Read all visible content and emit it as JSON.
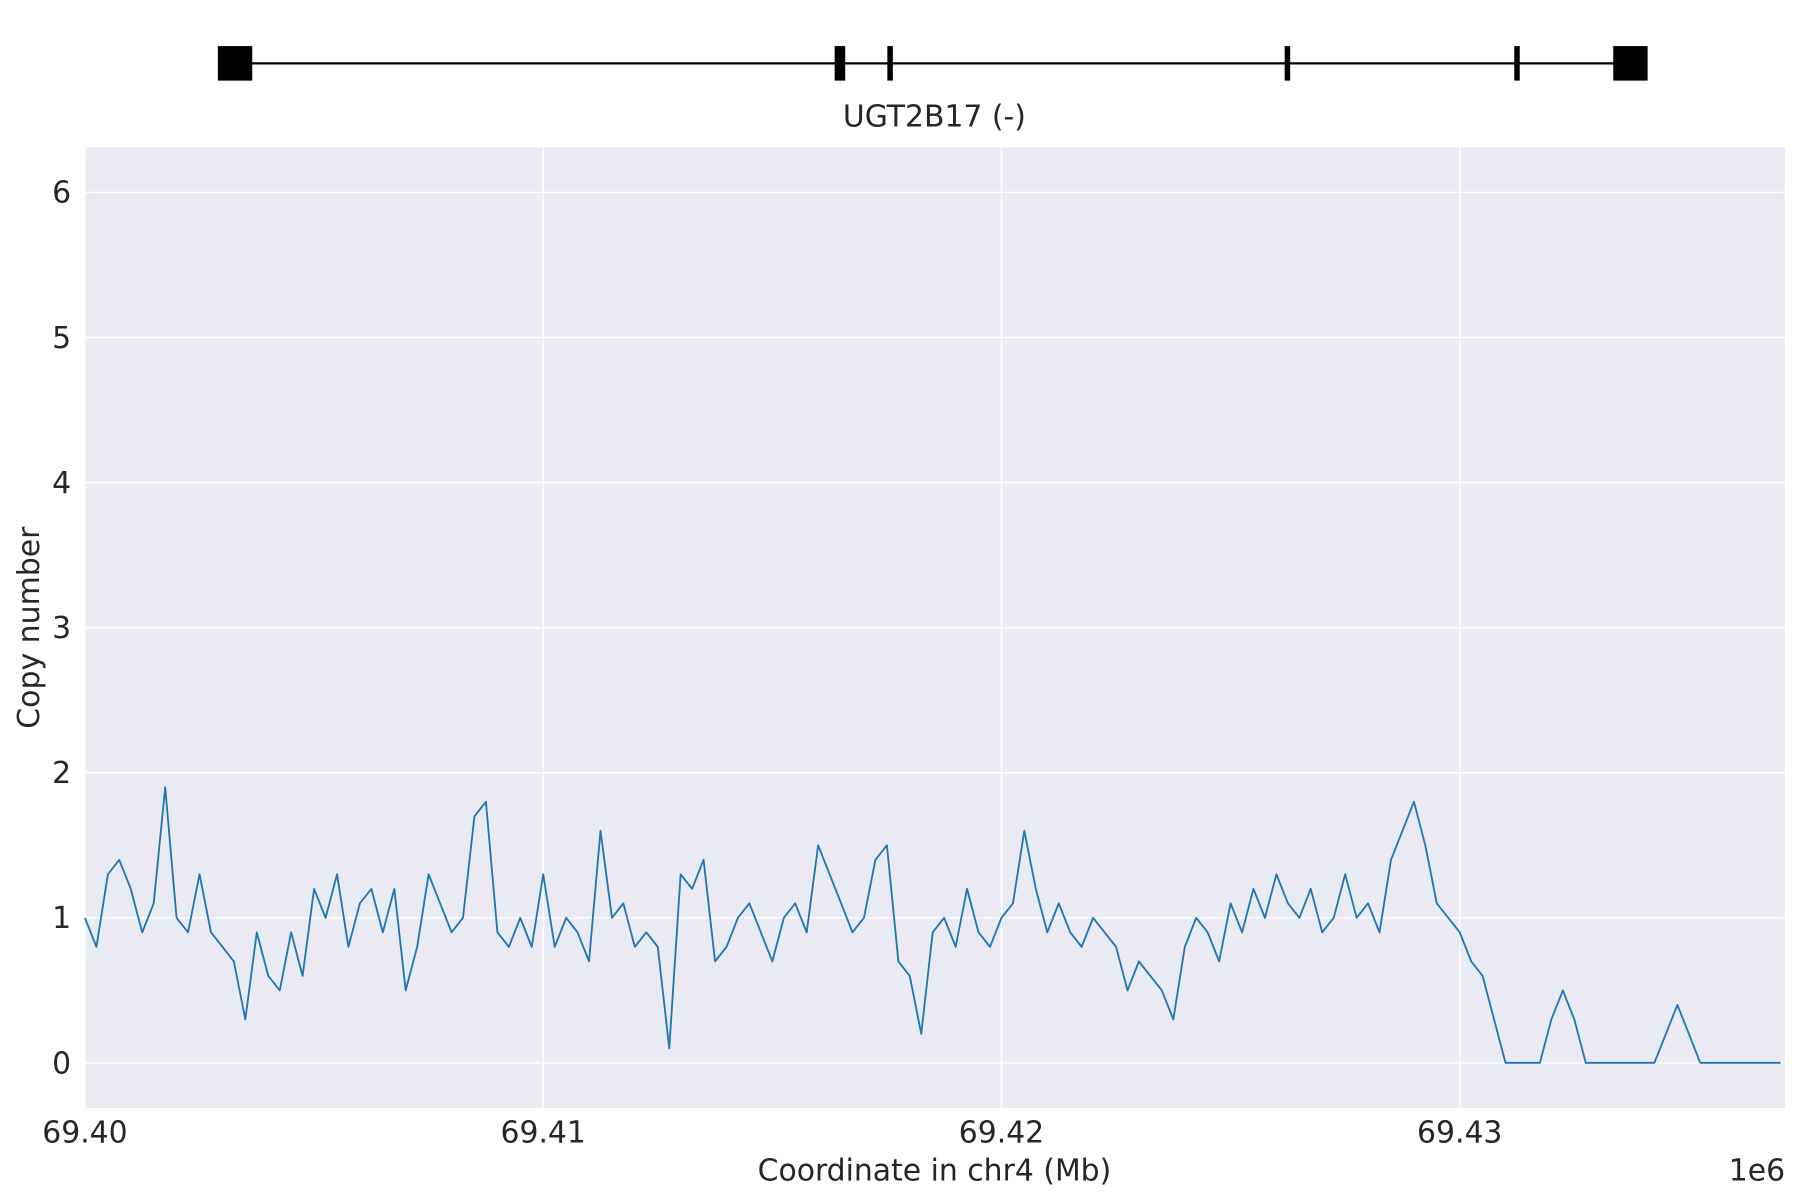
{
  "chart_data": {
    "type": "line",
    "gene": {
      "label": "UGT2B17 (-)",
      "start": 69.40328,
      "end": 69.43373,
      "exons": [
        [
          69.4029,
          69.40365
        ],
        [
          69.41636,
          69.41659
        ],
        [
          69.41751,
          69.41763
        ],
        [
          69.42618,
          69.4263
        ],
        [
          69.43119,
          69.43131
        ],
        [
          69.43335,
          69.4341
        ]
      ]
    },
    "xlabel": "Coordinate in chr4 (Mb)",
    "ylabel": "Copy number",
    "x_offset_label": "1e6",
    "xlim": [
      69.4,
      69.4371
    ],
    "ylim": [
      -0.31,
      6.31
    ],
    "xticks": [
      {
        "value": 69.4,
        "label": "69.40"
      },
      69.41,
      69.42,
      69.43
    ],
    "yticks": [
      0,
      1,
      2,
      3,
      4,
      5,
      6
    ],
    "grid": true,
    "series": [
      {
        "color": "#1f77b4",
        "x": [
          69.4,
          69.40025,
          69.4005,
          69.40075,
          69.401,
          69.40125,
          69.4015,
          69.40175,
          69.402,
          69.40225,
          69.4025,
          69.40275,
          69.403,
          69.40325,
          69.4035,
          69.40375,
          69.404,
          69.40425,
          69.4045,
          69.40475,
          69.405,
          69.40525,
          69.4055,
          69.40575,
          69.406,
          69.40625,
          69.4065,
          69.40675,
          69.407,
          69.40725,
          69.4075,
          69.40775,
          69.408,
          69.40825,
          69.4085,
          69.40875,
          69.409,
          69.40925,
          69.4095,
          69.40975,
          69.41,
          69.41025,
          69.4105,
          69.41075,
          69.411,
          69.41125,
          69.4115,
          69.41175,
          69.412,
          69.41225,
          69.4125,
          69.41275,
          69.413,
          69.41325,
          69.4135,
          69.41375,
          69.414,
          69.41425,
          69.4145,
          69.41475,
          69.415,
          69.41525,
          69.4155,
          69.41575,
          69.416,
          69.41625,
          69.4165,
          69.41675,
          69.417,
          69.41725,
          69.4175,
          69.41775,
          69.418,
          69.41825,
          69.4185,
          69.41875,
          69.419,
          69.41925,
          69.4195,
          69.41975,
          69.42,
          69.42025,
          69.4205,
          69.42075,
          69.421,
          69.42125,
          69.4215,
          69.42175,
          69.422,
          69.42225,
          69.4225,
          69.42275,
          69.423,
          69.42325,
          69.4235,
          69.42375,
          69.424,
          69.42425,
          69.4245,
          69.42475,
          69.425,
          69.42525,
          69.4255,
          69.42575,
          69.426,
          69.42625,
          69.4265,
          69.42675,
          69.427,
          69.42725,
          69.4275,
          69.42775,
          69.428,
          69.42825,
          69.4285,
          69.42875,
          69.429,
          69.42925,
          69.4295,
          69.42975,
          69.43,
          69.43025,
          69.4305,
          69.43075,
          69.431,
          69.43125,
          69.4315,
          69.43175,
          69.432,
          69.43225,
          69.4325,
          69.43275,
          69.433,
          69.43325,
          69.4335,
          69.43375,
          69.434,
          69.43425,
          69.4345,
          69.43475,
          69.435,
          69.43525,
          69.4355,
          69.43575,
          69.436,
          69.43625,
          69.4365,
          69.43675,
          69.437
        ],
        "values": [
          1.0,
          0.8,
          1.3,
          1.4,
          1.2,
          0.9,
          1.1,
          1.9,
          1.0,
          0.9,
          1.3,
          0.9,
          0.8,
          0.7,
          0.3,
          0.9,
          0.6,
          0.5,
          0.9,
          0.6,
          1.2,
          1.0,
          1.3,
          0.8,
          1.1,
          1.2,
          0.9,
          1.2,
          0.5,
          0.8,
          1.3,
          1.1,
          0.9,
          1.0,
          1.7,
          1.8,
          0.9,
          0.8,
          1.0,
          0.8,
          1.3,
          0.8,
          1.0,
          0.9,
          0.7,
          1.6,
          1.0,
          1.1,
          0.8,
          0.9,
          0.8,
          0.1,
          1.3,
          1.2,
          1.4,
          0.7,
          0.8,
          1.0,
          1.1,
          0.9,
          0.7,
          1.0,
          1.1,
          0.9,
          1.5,
          1.3,
          1.1,
          0.9,
          1.0,
          1.4,
          1.5,
          0.7,
          0.6,
          0.2,
          0.9,
          1.0,
          0.8,
          1.2,
          0.9,
          0.8,
          1.0,
          1.1,
          1.6,
          1.2,
          0.9,
          1.1,
          0.9,
          0.8,
          1.0,
          0.9,
          0.8,
          0.5,
          0.7,
          0.6,
          0.5,
          0.3,
          0.8,
          1.0,
          0.9,
          0.7,
          1.1,
          0.9,
          1.2,
          1.0,
          1.3,
          1.1,
          1.0,
          1.2,
          0.9,
          1.0,
          1.3,
          1.0,
          1.1,
          0.9,
          1.4,
          1.6,
          1.8,
          1.5,
          1.1,
          1.0,
          0.9,
          0.7,
          0.6,
          0.3,
          0.0,
          0.0,
          0.0,
          0.0,
          0.3,
          0.5,
          0.3,
          0.0,
          0.0,
          0.0,
          0.0,
          0.0,
          0.0,
          0.0,
          0.2,
          0.4,
          0.2,
          0.0,
          0.0,
          0.0,
          0.0,
          0.0,
          0.0,
          0.0,
          0.0
        ]
      }
    ]
  }
}
